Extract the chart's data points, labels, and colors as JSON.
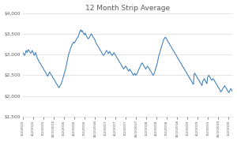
{
  "title": "12 Month Strip Average",
  "title_color": "#595959",
  "line_color": "#2E75B6",
  "bg_color": "#FFFFFF",
  "ylim": [
    1.5,
    4.0
  ],
  "yticks": [
    1.5,
    2.0,
    2.5,
    3.0,
    3.5,
    4.0
  ],
  "grid_color": "#D9D9D9",
  "xtick_labels": [
    "1/2/2015",
    "4/2/2015",
    "7/2/2015",
    "10/2/2015",
    "1/2/2016",
    "4/2/2016",
    "7/2/2016",
    "10/2/2016",
    "1/2/2017",
    "4/2/2017",
    "7/2/2017",
    "10/2/2017",
    "1/2/2018",
    "4/2/2018",
    "7/2/2018",
    "10/2/2018",
    "1/2/2019",
    "4/2/2019",
    "7/2/2019",
    "10/2/2019",
    "1/2/2020"
  ],
  "prices": [
    3.05,
    3.03,
    3.0,
    2.98,
    3.02,
    3.08,
    3.1,
    3.05,
    3.08,
    3.12,
    3.1,
    3.08,
    3.05,
    3.03,
    3.05,
    3.1,
    3.08,
    3.05,
    3.0,
    2.98,
    3.02,
    3.05,
    3.0,
    2.95,
    2.9,
    2.88,
    2.85,
    2.82,
    2.8,
    2.78,
    2.75,
    2.72,
    2.7,
    2.68,
    2.65,
    2.62,
    2.6,
    2.58,
    2.55,
    2.52,
    2.5,
    2.48,
    2.52,
    2.55,
    2.58,
    2.55,
    2.52,
    2.5,
    2.48,
    2.45,
    2.42,
    2.4,
    2.38,
    2.35,
    2.32,
    2.3,
    2.28,
    2.25,
    2.22,
    2.2,
    2.22,
    2.25,
    2.28,
    2.3,
    2.35,
    2.4,
    2.45,
    2.5,
    2.55,
    2.6,
    2.65,
    2.72,
    2.8,
    2.88,
    2.95,
    3.0,
    3.05,
    3.1,
    3.15,
    3.18,
    3.22,
    3.25,
    3.28,
    3.3,
    3.28,
    3.3,
    3.32,
    3.35,
    3.38,
    3.4,
    3.42,
    3.45,
    3.5,
    3.55,
    3.58,
    3.6,
    3.55,
    3.58,
    3.55,
    3.52,
    3.5,
    3.48,
    3.52,
    3.48,
    3.45,
    3.42,
    3.4,
    3.38,
    3.4,
    3.42,
    3.45,
    3.48,
    3.5,
    3.48,
    3.45,
    3.42,
    3.4,
    3.38,
    3.35,
    3.3,
    3.28,
    3.25,
    3.22,
    3.2,
    3.18,
    3.15,
    3.12,
    3.1,
    3.08,
    3.05,
    3.02,
    3.0,
    2.98,
    3.0,
    3.02,
    3.05,
    3.08,
    3.1,
    3.08,
    3.05,
    3.02,
    3.05,
    3.08,
    3.05,
    3.02,
    3.0,
    2.98,
    3.0,
    3.02,
    3.05,
    3.02,
    3.0,
    2.98,
    2.95,
    2.92,
    2.9,
    2.88,
    2.85,
    2.82,
    2.8,
    2.78,
    2.75,
    2.72,
    2.7,
    2.68,
    2.65,
    2.68,
    2.7,
    2.72,
    2.7,
    2.68,
    2.65,
    2.62,
    2.6,
    2.62,
    2.65,
    2.62,
    2.6,
    2.58,
    2.55,
    2.52,
    2.5,
    2.52,
    2.55,
    2.52,
    2.5,
    2.52,
    2.55,
    2.58,
    2.62,
    2.65,
    2.68,
    2.72,
    2.75,
    2.78,
    2.8,
    2.78,
    2.75,
    2.72,
    2.7,
    2.68,
    2.65,
    2.68,
    2.7,
    2.72,
    2.7,
    2.68,
    2.65,
    2.62,
    2.6,
    2.58,
    2.55,
    2.52,
    2.5,
    2.52,
    2.55,
    2.6,
    2.65,
    2.7,
    2.75,
    2.8,
    2.88,
    2.95,
    3.0,
    3.05,
    3.1,
    3.15,
    3.2,
    3.25,
    3.3,
    3.35,
    3.38,
    3.4,
    3.42,
    3.4,
    3.38,
    3.35,
    3.32,
    3.3,
    3.28,
    3.25,
    3.22,
    3.2,
    3.18,
    3.15,
    3.12,
    3.1,
    3.08,
    3.05,
    3.02,
    3.0,
    2.98,
    2.95,
    2.92,
    2.9,
    2.88,
    2.85,
    2.82,
    2.8,
    2.78,
    2.75,
    2.72,
    2.7,
    2.68,
    2.65,
    2.62,
    2.6,
    2.58,
    2.55,
    2.52,
    2.5,
    2.48,
    2.45,
    2.42,
    2.4,
    2.38,
    2.35,
    2.32,
    2.3,
    2.28,
    2.52,
    2.55,
    2.52,
    2.5,
    2.48,
    2.45,
    2.42,
    2.4,
    2.38,
    2.35,
    2.32,
    2.3,
    2.28,
    2.25,
    2.35,
    2.38,
    2.4,
    2.42,
    2.38,
    2.35,
    2.32,
    2.3,
    2.45,
    2.48,
    2.5,
    2.48,
    2.45,
    2.42,
    2.4,
    2.38,
    2.4,
    2.42,
    2.4,
    2.38,
    2.35,
    2.32,
    2.3,
    2.28,
    2.25,
    2.22,
    2.2,
    2.18,
    2.15,
    2.12,
    2.1,
    2.12,
    2.15,
    2.18,
    2.2,
    2.22,
    2.25,
    2.22,
    2.2,
    2.18,
    2.15,
    2.12,
    2.1,
    2.08,
    2.12,
    2.15,
    2.18,
    2.15,
    2.12,
    2.1
  ]
}
